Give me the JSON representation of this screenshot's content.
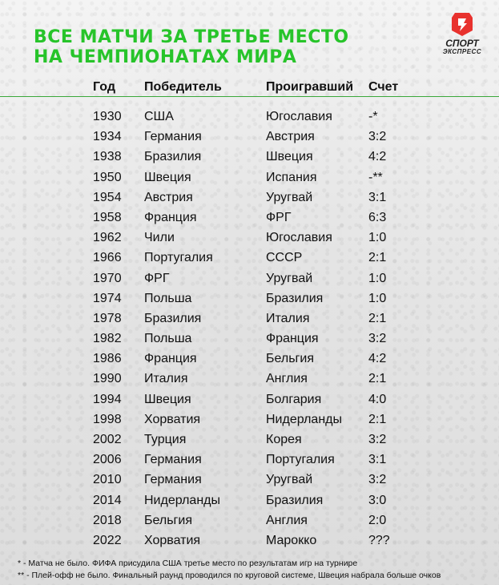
{
  "title": {
    "line1": "ВСЕ МАТЧИ ЗА ТРЕТЬЕ МЕСТО",
    "line2": "НА ЧЕМПИОНАТАХ МИРА"
  },
  "logo": {
    "line1": "СПОРТ",
    "line2": "ЭКСПРЕСС",
    "icon": "sport-express-logo",
    "accent_color": "#e8322e"
  },
  "colors": {
    "title": "#27c42a",
    "divider": "#3aa83a"
  },
  "table": {
    "headers": [
      "Год",
      "Победитель",
      "Проигравший",
      "Счет"
    ],
    "rows": [
      [
        "1930",
        "США",
        "Югославия",
        "-*"
      ],
      [
        "1934",
        "Германия",
        "Австрия",
        "3:2"
      ],
      [
        "1938",
        "Бразилия",
        "Швеция",
        "4:2"
      ],
      [
        "1950",
        "Швеция",
        "Испания",
        "-**"
      ],
      [
        "1954",
        "Австрия",
        "Уругвай",
        "3:1"
      ],
      [
        "1958",
        "Франция",
        "ФРГ",
        "6:3"
      ],
      [
        "1962",
        "Чили",
        "Югославия",
        "1:0"
      ],
      [
        "1966",
        "Португалия",
        " СССР",
        "2:1"
      ],
      [
        "1970",
        "ФРГ",
        "Уругвай",
        "1:0"
      ],
      [
        "1974",
        "Польша",
        "Бразилия",
        "1:0"
      ],
      [
        "1978",
        "Бразилия",
        "Италия",
        "2:1"
      ],
      [
        "1982",
        "Польша",
        "Франция",
        "3:2"
      ],
      [
        "1986",
        "Франция",
        "Бельгия",
        "4:2"
      ],
      [
        "1990",
        "Италия",
        "Англия",
        "2:1"
      ],
      [
        "1994",
        "Швеция",
        "Болгария",
        "4:0"
      ],
      [
        "1998",
        "Хорватия",
        "Нидерланды",
        "2:1"
      ],
      [
        "2002",
        "Турция",
        "Корея",
        "3:2"
      ],
      [
        "2006",
        "Германия",
        "Португалия",
        "3:1"
      ],
      [
        "2010",
        "Германия",
        "Уругвай",
        "3:2"
      ],
      [
        "2014",
        "Нидерланды",
        "Бразилия",
        "3:0"
      ],
      [
        "2018",
        "Бельгия",
        "Англия",
        "2:0"
      ],
      [
        "2022",
        "Хорватия",
        "Марокко",
        "???"
      ]
    ]
  },
  "notes": {
    "note1": "* - Матча не было. ФИФА присудила США третье место по результатам игр на турнире",
    "note2": "** - Плей-офф не было. Финальный раунд проводился по круговой системе, Швеция набрала больше очков"
  }
}
